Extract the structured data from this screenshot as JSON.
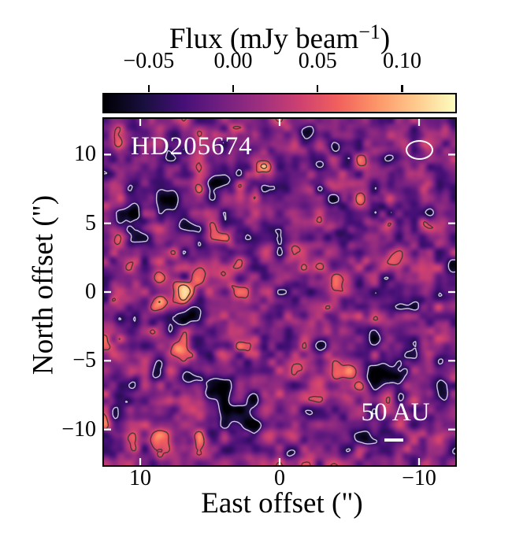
{
  "colorbar": {
    "title_prefix": "Flux (mJy beam",
    "title_sup": "−1",
    "title_suffix": ")",
    "tick_labels": [
      "−0.05",
      "0.00",
      "0.05",
      "0.10"
    ],
    "tick_values": [
      -0.05,
      0.0,
      0.05,
      0.1
    ],
    "vmin": -0.0765,
    "vmax": 0.1315,
    "colormap": "magma"
  },
  "axes": {
    "xlabel": "East offset (\")",
    "ylabel": "North offset (\")",
    "x_tick_values": [
      10,
      0,
      -10
    ],
    "x_tick_labels": [
      "10",
      "0",
      "−10"
    ],
    "y_tick_values": [
      10,
      5,
      0,
      -5,
      -10
    ],
    "y_tick_labels": [
      "10",
      "5",
      "0",
      "−5",
      "−10"
    ],
    "extent_arcsec": 12.6
  },
  "annotations": {
    "source_name": "HD205674",
    "scalebar_label": "50 AU",
    "scalebar_length_arcsec": 1.35,
    "beam_major_arcsec": 1.75,
    "beam_minor_arcsec": 1.2
  },
  "chart_data": {
    "type": "heatmap",
    "title": "Flux (mJy beam−1)",
    "xlabel": "East offset (\")",
    "ylabel": "North offset (\")",
    "x_range": [
      12.6,
      -12.6
    ],
    "y_range": [
      -12.6,
      12.6
    ],
    "colormap": "magma",
    "vmin": -0.0765,
    "vmax": 0.1315,
    "noise_rms": 0.022,
    "grid": false,
    "contour_levels": [
      {
        "level": -0.045,
        "style": "dashed",
        "color": "#cdc8de"
      },
      {
        "level": 0.045,
        "style": "solid",
        "color": "#4f3636"
      },
      {
        "level": 0.09,
        "style": "solid",
        "color": "#4f3636"
      }
    ],
    "noise": {
      "seed": 205674,
      "octaves": [
        {
          "cells": 27,
          "amplitude": 0.026
        },
        {
          "cells": 45,
          "amplitude": 0.015
        }
      ]
    },
    "features": [
      {
        "east": 7.1,
        "north": 0.0,
        "amplitude": 0.1,
        "sigma_major": 0.9,
        "sigma_minor": 0.75,
        "angle_deg": -20
      },
      {
        "east": 4.4,
        "north": 1.6,
        "amplitude": 0.052,
        "sigma_major": 1.4,
        "sigma_minor": 0.55,
        "angle_deg": -12
      },
      {
        "east": 6.8,
        "north": -1.7,
        "amplitude": -0.07,
        "sigma_major": 1.1,
        "sigma_minor": 0.6,
        "angle_deg": -18
      },
      {
        "east": -8.0,
        "north": 2.3,
        "amplitude": 0.062,
        "sigma_major": 1.4,
        "sigma_minor": 0.55,
        "angle_deg": -40
      },
      {
        "east": -4.2,
        "north": 0.9,
        "amplitude": 0.056,
        "sigma_major": 0.8,
        "sigma_minor": 0.55,
        "angle_deg": -15
      },
      {
        "east": -7.5,
        "north": -6.0,
        "amplitude": -0.085,
        "sigma_major": 1.1,
        "sigma_minor": 0.65,
        "angle_deg": 12
      },
      {
        "east": -1.8,
        "north": -5.6,
        "amplitude": 0.054,
        "sigma_major": 0.65,
        "sigma_minor": 0.5,
        "angle_deg": 20
      },
      {
        "east": -4.8,
        "north": -5.8,
        "amplitude": 0.054,
        "sigma_major": 0.6,
        "sigma_minor": 0.45,
        "angle_deg": 0
      },
      {
        "east": 6.5,
        "north": -6.1,
        "amplitude": -0.058,
        "sigma_major": 0.95,
        "sigma_minor": 0.5,
        "angle_deg": 35
      },
      {
        "east": 4.9,
        "north": -6.9,
        "amplitude": -0.062,
        "sigma_major": 0.85,
        "sigma_minor": 0.6,
        "angle_deg": 35
      },
      {
        "east": 2.9,
        "north": -8.7,
        "amplitude": -0.088,
        "sigma_major": 0.95,
        "sigma_minor": 0.7,
        "angle_deg": 30
      },
      {
        "east": 8.7,
        "north": -10.6,
        "amplitude": 0.062,
        "sigma_major": 0.75,
        "sigma_minor": 0.6,
        "angle_deg": 0
      },
      {
        "east": 1.2,
        "north": 9.0,
        "amplitude": 0.056,
        "sigma_major": 0.6,
        "sigma_minor": 0.5,
        "angle_deg": 0
      },
      {
        "east": 3.9,
        "north": 8.2,
        "amplitude": -0.056,
        "sigma_major": 0.95,
        "sigma_minor": 0.5,
        "angle_deg": -30
      },
      {
        "east": 7.9,
        "north": 6.4,
        "amplitude": -0.054,
        "sigma_major": 0.75,
        "sigma_minor": 0.5,
        "angle_deg": 80
      },
      {
        "east": 10.2,
        "north": 4.9,
        "amplitude": -0.054,
        "sigma_major": 0.75,
        "sigma_minor": 0.45,
        "angle_deg": 75
      },
      {
        "east": -8.6,
        "north": 10.0,
        "amplitude": -0.05,
        "sigma_major": 0.55,
        "sigma_minor": 0.45,
        "angle_deg": 0
      },
      {
        "east": -4.6,
        "north": 8.7,
        "amplitude": 0.05,
        "sigma_major": 0.4,
        "sigma_minor": 0.35,
        "angle_deg": 0
      },
      {
        "east": 7.3,
        "north": -4.4,
        "amplitude": 0.05,
        "sigma_major": 0.45,
        "sigma_minor": 0.35,
        "angle_deg": 0
      },
      {
        "east": 4.3,
        "north": -4.5,
        "amplitude": 0.05,
        "sigma_major": 0.4,
        "sigma_minor": 0.35,
        "angle_deg": 0
      },
      {
        "east": -4.2,
        "north": 4.3,
        "amplitude": -0.048,
        "sigma_major": 0.4,
        "sigma_minor": 0.35,
        "angle_deg": 0
      },
      {
        "east": -11.5,
        "north": -0.2,
        "amplitude": -0.05,
        "sigma_major": 0.5,
        "sigma_minor": 0.4,
        "angle_deg": 0
      },
      {
        "east": -12.3,
        "north": 1.9,
        "amplitude": -0.048,
        "sigma_major": 0.45,
        "sigma_minor": 0.4,
        "angle_deg": 0
      }
    ]
  }
}
